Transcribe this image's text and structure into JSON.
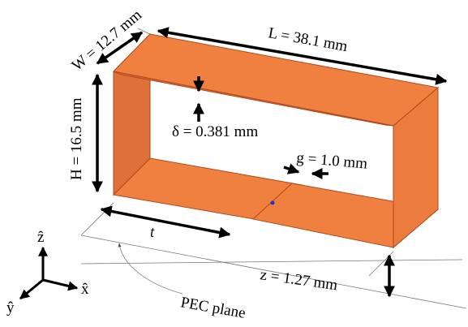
{
  "labels": {
    "width": "W = 12.7 mm",
    "length": "L = 38.1 mm",
    "height": "H = 16.5 mm",
    "thickness": "δ = 0.381 mm",
    "gap": "g = 1.0 mm",
    "t": "t",
    "z": "z = 1.27 mm",
    "plane": "PEC plane"
  },
  "axes": {
    "z": "ẑ",
    "x": "x̂",
    "y": "ŷ"
  }
}
